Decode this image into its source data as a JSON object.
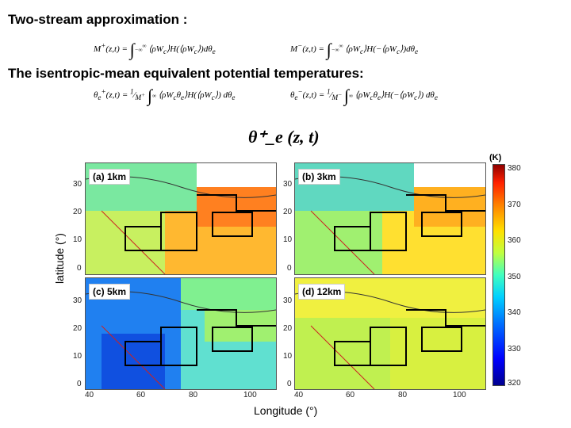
{
  "headings": {
    "two_stream": "Two-stream approximation :",
    "isentropic": "The isentropic-mean equivalent potential temperatures:"
  },
  "equations": {
    "mplus": "M⁺(z,t) = ∫ ⟨ρW_c⟩H(⟨ρW_c⟩)dθ_e",
    "mminus": "M⁻(z,t) = ∫ ⟨ρW_c⟩H(−⟨ρW_c⟩)dθ_e",
    "theta_plus": "θ⁺_e(z,t) = (1/M⁺) ∫ ⟨ρW_cθ_e⟩H(⟨ρW_c⟩) dθ_e",
    "theta_minus": "θ⁻_e(z,t) = (1/M⁻) ∫ ⟨ρW_cθ_e⟩H(−⟨ρW_c⟩) dθ_e"
  },
  "figure": {
    "title": "θ⁺_e (z, t)",
    "panels": [
      "(a) 1km",
      "(b) 3km",
      "(c) 5km",
      "(d) 12km"
    ],
    "ylabel": "latitude (°)",
    "xlabel": "Longitude (°)",
    "yticks": [
      "30",
      "20",
      "10",
      "0"
    ],
    "xticks": [
      "40",
      "60",
      "80",
      "100"
    ],
    "colorbar": {
      "unit": "(K)",
      "ticks": [
        "380",
        "370",
        "360",
        "350",
        "340",
        "330",
        "320"
      ],
      "range": [
        320,
        380
      ]
    }
  }
}
